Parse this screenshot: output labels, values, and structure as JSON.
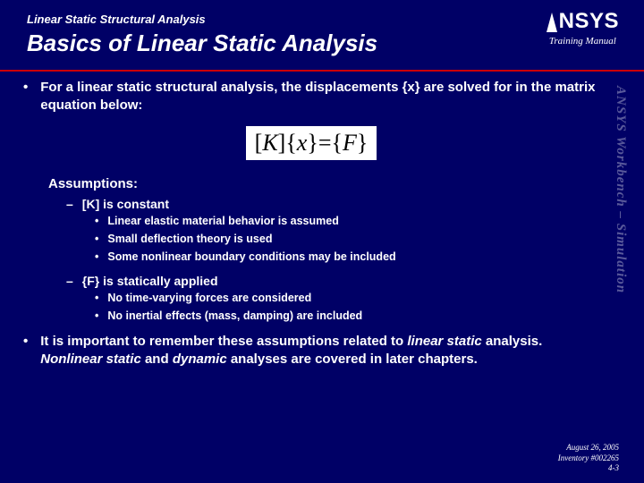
{
  "header": {
    "breadcrumb": "Linear Static Structural Analysis",
    "title": "Basics of Linear Static Analysis",
    "logo_text": "NSYS",
    "training_manual": "Training Manual"
  },
  "side_text": "ANSYS Workbench – Simulation",
  "content": {
    "intro": "For a linear static structural analysis, the displacements {x} are solved for in the matrix equation below:",
    "equation": {
      "K": "K",
      "x": "x",
      "F": "F"
    },
    "assumptions_label": "Assumptions:",
    "assumption_k": "[K] is constant",
    "k_points": [
      "Linear elastic material behavior is assumed",
      "Small deflection theory is used",
      "Some nonlinear boundary conditions may be included"
    ],
    "assumption_f": "{F} is statically applied",
    "f_points": [
      "No time-varying forces are considered",
      "No inertial effects (mass, damping) are included"
    ],
    "closing_pre": "It is important to remember these assumptions related to ",
    "closing_em1": "linear static",
    "closing_mid": " analysis.  ",
    "closing_em2": "Nonlinear static",
    "closing_and": " and ",
    "closing_em3": "dynamic",
    "closing_post": " analyses are covered in later chapters."
  },
  "footer": {
    "date": "August 26, 2005",
    "inventory": "Inventory #002265",
    "page": "4-3"
  },
  "colors": {
    "background": "#000066",
    "accent": "#cc0000",
    "text": "#ffffff",
    "equation_bg": "#ffffff",
    "equation_text": "#000000"
  }
}
